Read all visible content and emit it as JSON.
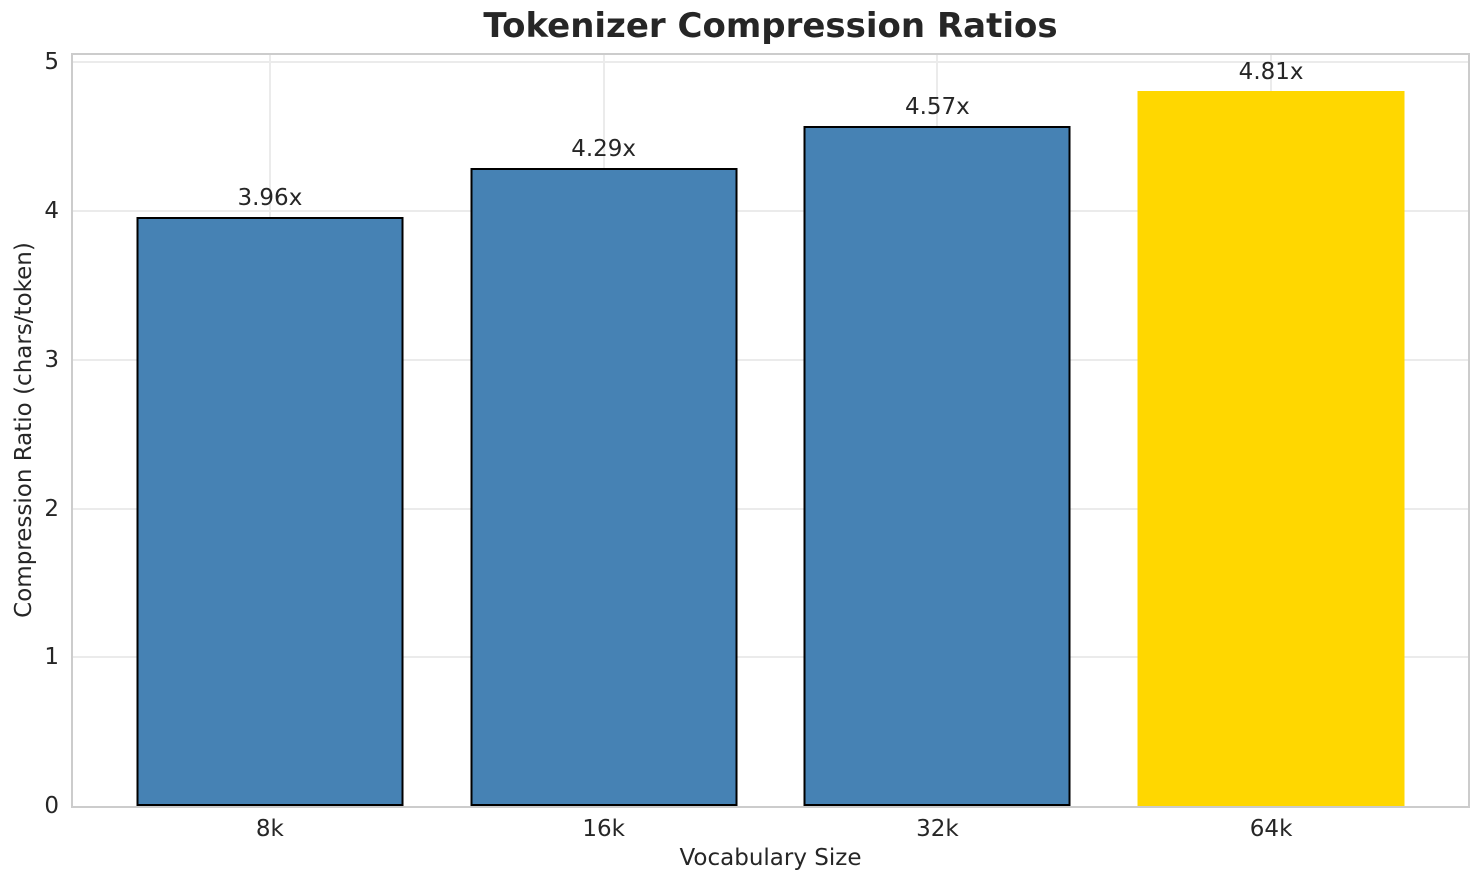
{
  "figure": {
    "background": "#ffffff"
  },
  "chart_data": {
    "type": "bar",
    "title": "Tokenizer Compression Ratios",
    "xlabel": "Vocabulary Size",
    "ylabel": "Compression Ratio (chars/token)",
    "categories": [
      "8k",
      "16k",
      "32k",
      "64k"
    ],
    "values": [
      3.96,
      4.29,
      4.57,
      4.81
    ],
    "bar_labels": [
      "3.96x",
      "4.29x",
      "4.57x",
      "4.81x"
    ],
    "yticks": [
      0,
      1,
      2,
      3,
      4,
      5
    ],
    "ylim": [
      0,
      5.05
    ],
    "grid": true,
    "legend_position": "none",
    "bar_colors": [
      "#4682B4",
      "#4682B4",
      "#4682B4",
      "#FFD700"
    ],
    "bar_edge_colors": [
      "#000000",
      "#000000",
      "#000000",
      "none"
    ],
    "highlight_category": "64k"
  },
  "colors": {
    "grid": "#ebebeb",
    "spine": "#cccccc",
    "text": "#262626",
    "accent_blue": "#4682B4",
    "accent_gold": "#FFD700"
  }
}
